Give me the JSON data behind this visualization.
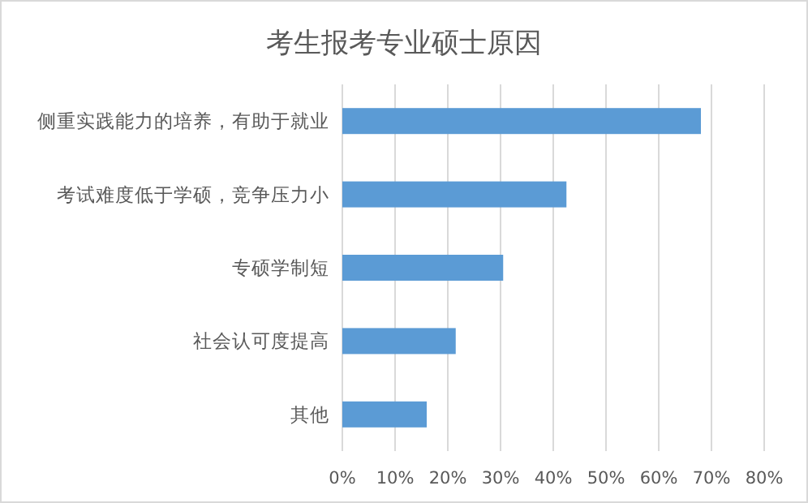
{
  "chart_data": {
    "type": "bar",
    "orientation": "horizontal",
    "title": "考生报考专业硕士原因",
    "categories": [
      "侧重实践能力的培养，有助于就业",
      "考试难度低于学硕，竞争压力小",
      "专硕学制短",
      "社会认可度提高",
      "其他"
    ],
    "values": [
      68,
      42.5,
      30.5,
      21.5,
      16
    ],
    "color": "#5b9bd5",
    "xlim": [
      0,
      80
    ],
    "xticks": [
      {
        "value": 0,
        "label": "0%"
      },
      {
        "value": 10,
        "label": "10%"
      },
      {
        "value": 20,
        "label": "20%"
      },
      {
        "value": 30,
        "label": "30%"
      },
      {
        "value": 40,
        "label": "40%"
      },
      {
        "value": 50,
        "label": "50%"
      },
      {
        "value": 60,
        "label": "60%"
      },
      {
        "value": 70,
        "label": "70%"
      },
      {
        "value": 80,
        "label": "80%"
      }
    ],
    "grid": "x"
  }
}
